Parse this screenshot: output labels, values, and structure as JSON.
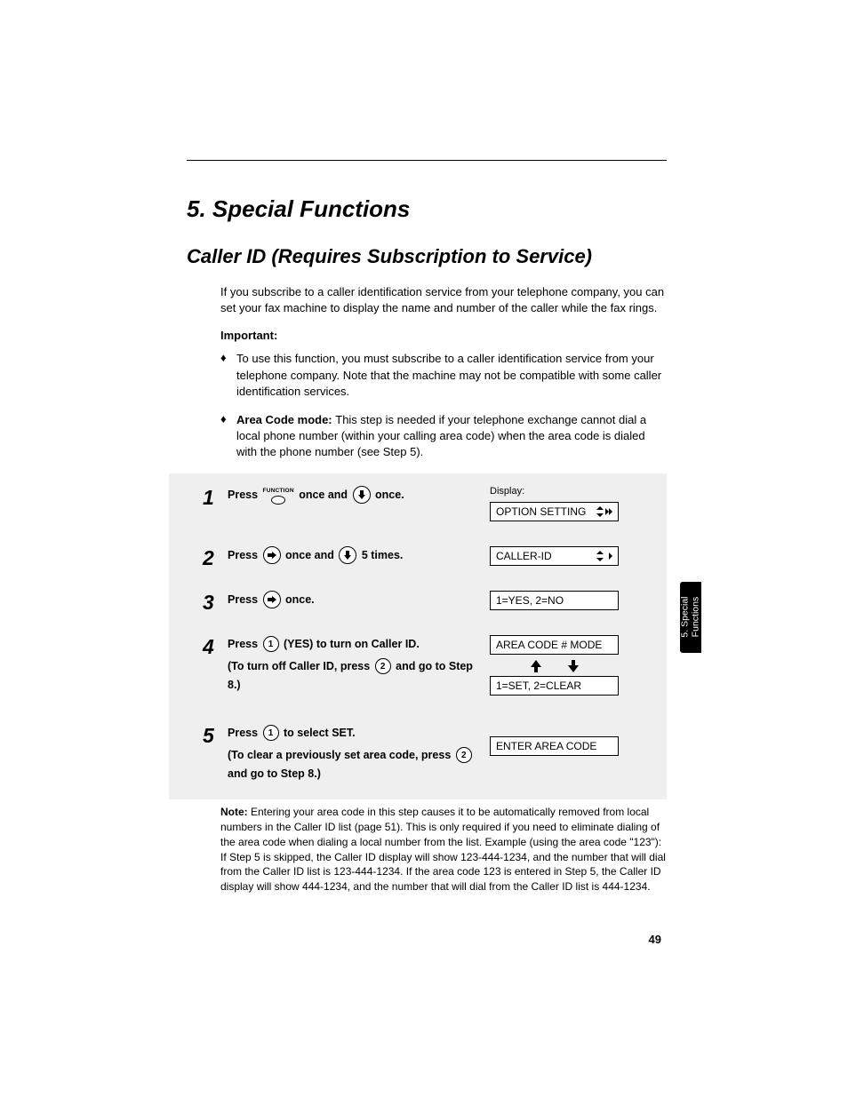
{
  "chapter_title": "5. Special Functions",
  "section_title": "Caller ID (Requires Subscription to Service)",
  "intro": "If you subscribe to a caller identification service from your telephone company, you can set your fax machine to display the name and number of the caller while the fax rings.",
  "important_label": "Important:",
  "bullets": [
    {
      "text": "To use this function, you must subscribe to a caller identification service from your telephone company. Note that the machine may not be compatible with some caller identification services."
    },
    {
      "bold_prefix": "Area Code mode: ",
      "text": "This step is needed if your telephone exchange cannot dial a local phone number (within your calling area code) when the area code is dialed with the phone number (see Step 5)."
    }
  ],
  "display_label": "Display:",
  "steps": [
    {
      "num": "1",
      "instr_parts": [
        "Press ",
        "FUNCTION_KEY",
        " once and ",
        "DOWN_KEY",
        " once."
      ],
      "displays": [
        "OPTION SETTING"
      ],
      "show_display_label": true,
      "display_nav": "updown-leftright"
    },
    {
      "num": "2",
      "instr_parts": [
        "Press ",
        "RIGHT_KEY",
        " once and ",
        "DOWN_KEY",
        " 5 times."
      ],
      "displays": [
        "CALLER-ID"
      ],
      "display_nav": "updown-leftright"
    },
    {
      "num": "3",
      "instr_parts": [
        "Press ",
        "RIGHT_KEY",
        " once."
      ],
      "displays": [
        "1=YES, 2=NO"
      ]
    },
    {
      "num": "4",
      "instr_parts": [
        "Press ",
        "KEY_1",
        " (YES) to turn on Caller ID."
      ],
      "sub_parts": [
        "(To turn off Caller ID, press ",
        "KEY_2",
        " and go to Step 8.)"
      ],
      "displays": [
        "AREA CODE # MODE",
        "1=SET, 2=CLEAR"
      ],
      "arrow_between": true
    },
    {
      "num": "5",
      "instr_parts": [
        "Press ",
        "KEY_1",
        " to select SET."
      ],
      "sub_parts": [
        "(To clear a previously set area code, press ",
        "KEY_2",
        " and go to Step 8.)"
      ],
      "displays": [
        "ENTER AREA CODE"
      ],
      "extra_top": true
    }
  ],
  "note_bold": "Note: ",
  "note_text": "Entering your area code in this step causes it to be automatically removed from local numbers in the Caller ID list (page 51). This is only required if you need to eliminate dialing of the area code when dialing a local number from the list. Example (using the area code \"123\"): If Step 5 is skipped, the Caller ID display will show 123-444-1234, and the number that will dial from the Caller ID list is 123-444-1234. If the area code 123 is entered in Step 5, the Caller ID display will show 444-1234, and the number that will dial from the Caller ID list is 444-1234.",
  "side_tab_line1": "5. Special",
  "side_tab_line2": "Functions",
  "page_number": "49",
  "key_labels": {
    "function": "FUNCTION",
    "key1": "1",
    "key2": "2"
  }
}
